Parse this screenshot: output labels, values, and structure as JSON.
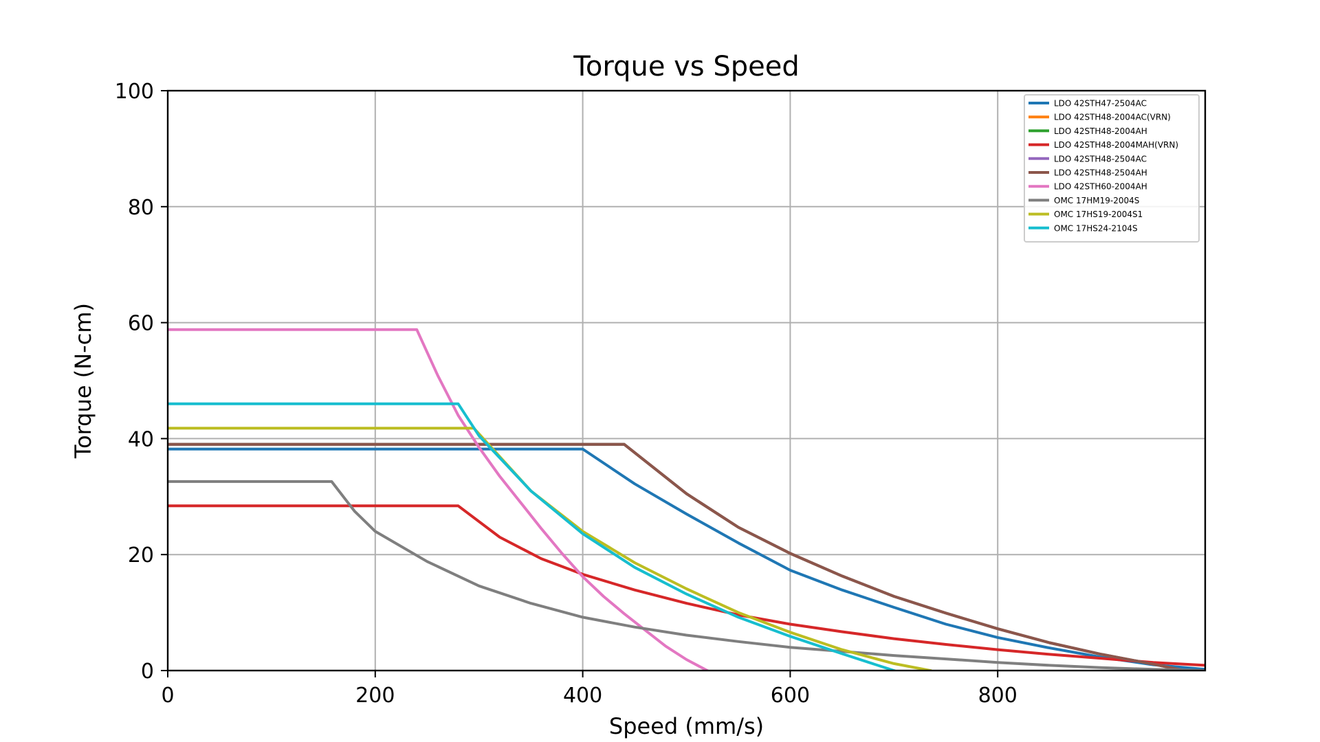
{
  "chart_data": {
    "type": "line",
    "title": "Torque vs Speed",
    "xlabel": "Speed (mm/s)",
    "ylabel": "Torque (N-cm)",
    "xlim": [
      0,
      1000
    ],
    "ylim": [
      0,
      100
    ],
    "xticks": [
      0,
      200,
      400,
      600,
      800
    ],
    "yticks": [
      0,
      20,
      40,
      60,
      80,
      100
    ],
    "grid": true,
    "legend_position": "top-right",
    "series": [
      {
        "name": "LDO 42STH47-2504AC",
        "color": "#1f77b4",
        "x": [
          0,
          400,
          450,
          500,
          550,
          600,
          650,
          700,
          750,
          800,
          850,
          900,
          950,
          1000
        ],
        "y": [
          38.2,
          38.2,
          32.2,
          27.0,
          22.0,
          17.3,
          13.9,
          10.9,
          8.0,
          5.7,
          3.9,
          2.3,
          1.0,
          0.2
        ]
      },
      {
        "name": "LDO 42STH48-2004AC(VRN)",
        "color": "#ff7f0e",
        "x": [
          0,
          440,
          500,
          550,
          600,
          650,
          700,
          750,
          800,
          850,
          900,
          950,
          980
        ],
        "y": [
          39.0,
          39.0,
          30.5,
          24.7,
          20.2,
          16.3,
          12.8,
          9.9,
          7.2,
          4.8,
          2.8,
          1.1,
          0.0
        ]
      },
      {
        "name": "LDO 42STH48-2004AH",
        "color": "#2ca02c",
        "x": [
          0,
          440,
          500,
          550,
          600,
          650,
          700,
          750,
          800,
          850,
          900,
          950,
          980
        ],
        "y": [
          39.0,
          39.0,
          30.5,
          24.7,
          20.2,
          16.3,
          12.8,
          9.9,
          7.2,
          4.8,
          2.8,
          1.1,
          0.0
        ]
      },
      {
        "name": "LDO 42STH48-2004MAH(VRN)",
        "color": "#d62728",
        "x": [
          0,
          280,
          320,
          360,
          400,
          450,
          500,
          550,
          600,
          650,
          700,
          750,
          800,
          850,
          900,
          950,
          1000
        ],
        "y": [
          28.4,
          28.4,
          23.0,
          19.3,
          16.6,
          13.9,
          11.6,
          9.6,
          8.0,
          6.7,
          5.5,
          4.5,
          3.6,
          2.8,
          2.1,
          1.4,
          0.9
        ]
      },
      {
        "name": "LDO 42STH48-2504AC",
        "color": "#9467bd",
        "x": [
          0,
          440,
          500,
          550,
          600,
          650,
          700,
          750,
          800,
          850,
          900,
          950,
          980
        ],
        "y": [
          39.0,
          39.0,
          30.5,
          24.7,
          20.2,
          16.3,
          12.8,
          9.9,
          7.2,
          4.8,
          2.8,
          1.1,
          0.0
        ]
      },
      {
        "name": "LDO 42STH48-2504AH",
        "color": "#8c564b",
        "x": [
          0,
          440,
          500,
          550,
          600,
          650,
          700,
          750,
          800,
          850,
          900,
          950,
          980
        ],
        "y": [
          39.0,
          39.0,
          30.5,
          24.7,
          20.2,
          16.3,
          12.8,
          9.9,
          7.2,
          4.8,
          2.8,
          1.1,
          0.0
        ]
      },
      {
        "name": "LDO 42STH60-2004AH",
        "color": "#e377c2",
        "x": [
          0,
          240,
          260,
          280,
          300,
          320,
          340,
          360,
          380,
          400,
          420,
          440,
          460,
          480,
          500,
          520
        ],
        "y": [
          58.8,
          58.8,
          51.0,
          44.0,
          38.5,
          33.5,
          29.0,
          24.5,
          20.2,
          16.2,
          12.8,
          9.8,
          7.0,
          4.2,
          1.9,
          0.0
        ]
      },
      {
        "name": "OMC 17HM19-2004S",
        "color": "#7f7f7f",
        "x": [
          0,
          158,
          180,
          200,
          250,
          300,
          350,
          400,
          450,
          500,
          550,
          600,
          650,
          700,
          750,
          800,
          850,
          900,
          950,
          1000
        ],
        "y": [
          32.6,
          32.6,
          27.5,
          24.0,
          18.8,
          14.6,
          11.6,
          9.2,
          7.5,
          6.1,
          5.0,
          4.0,
          3.3,
          2.6,
          2.0,
          1.4,
          0.9,
          0.5,
          0.2,
          0.0
        ]
      },
      {
        "name": "OMC 17HS19-2004S1",
        "color": "#bcbd22",
        "x": [
          0,
          295,
          350,
          400,
          450,
          500,
          550,
          600,
          650,
          700,
          735
        ],
        "y": [
          41.8,
          41.8,
          31.0,
          24.0,
          18.6,
          14.1,
          10.0,
          6.6,
          3.6,
          1.2,
          0.0
        ]
      },
      {
        "name": "OMC 17HS24-2104S",
        "color": "#17becf",
        "x": [
          0,
          280,
          300,
          350,
          400,
          450,
          500,
          550,
          600,
          650,
          700
        ],
        "y": [
          46.0,
          46.0,
          40.5,
          31.0,
          23.6,
          17.8,
          13.2,
          9.2,
          5.9,
          2.9,
          0.0
        ]
      }
    ]
  }
}
